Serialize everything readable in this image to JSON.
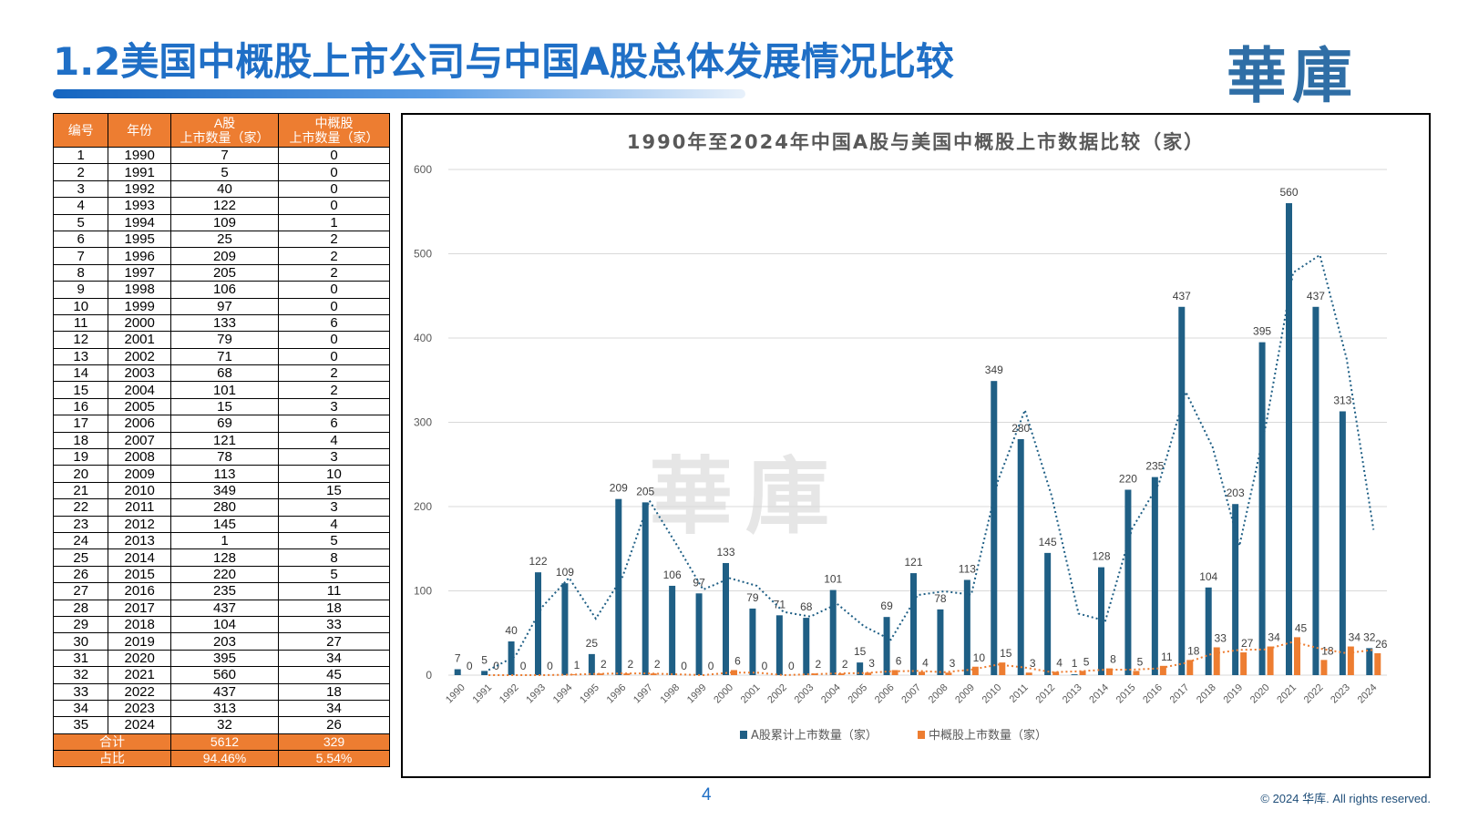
{
  "header": {
    "title": "1.2美国中概股上市公司与中国A股总体发展情况比较",
    "logo_text": "華庫"
  },
  "table": {
    "headers": [
      "编号",
      "年份",
      "A股\n上市数量（家）",
      "中概股\n上市数量（家）"
    ],
    "rows": [
      [
        "1",
        "1990",
        "7",
        "0"
      ],
      [
        "2",
        "1991",
        "5",
        "0"
      ],
      [
        "3",
        "1992",
        "40",
        "0"
      ],
      [
        "4",
        "1993",
        "122",
        "0"
      ],
      [
        "5",
        "1994",
        "109",
        "1"
      ],
      [
        "6",
        "1995",
        "25",
        "2"
      ],
      [
        "7",
        "1996",
        "209",
        "2"
      ],
      [
        "8",
        "1997",
        "205",
        "2"
      ],
      [
        "9",
        "1998",
        "106",
        "0"
      ],
      [
        "10",
        "1999",
        "97",
        "0"
      ],
      [
        "11",
        "2000",
        "133",
        "6"
      ],
      [
        "12",
        "2001",
        "79",
        "0"
      ],
      [
        "13",
        "2002",
        "71",
        "0"
      ],
      [
        "14",
        "2003",
        "68",
        "2"
      ],
      [
        "15",
        "2004",
        "101",
        "2"
      ],
      [
        "16",
        "2005",
        "15",
        "3"
      ],
      [
        "17",
        "2006",
        "69",
        "6"
      ],
      [
        "18",
        "2007",
        "121",
        "4"
      ],
      [
        "19",
        "2008",
        "78",
        "3"
      ],
      [
        "20",
        "2009",
        "113",
        "10"
      ],
      [
        "21",
        "2010",
        "349",
        "15"
      ],
      [
        "22",
        "2011",
        "280",
        "3"
      ],
      [
        "23",
        "2012",
        "145",
        "4"
      ],
      [
        "24",
        "2013",
        "1",
        "5"
      ],
      [
        "25",
        "2014",
        "128",
        "8"
      ],
      [
        "26",
        "2015",
        "220",
        "5"
      ],
      [
        "27",
        "2016",
        "235",
        "11"
      ],
      [
        "28",
        "2017",
        "437",
        "18"
      ],
      [
        "29",
        "2018",
        "104",
        "33"
      ],
      [
        "30",
        "2019",
        "203",
        "27"
      ],
      [
        "31",
        "2020",
        "395",
        "34"
      ],
      [
        "32",
        "2021",
        "560",
        "45"
      ],
      [
        "33",
        "2022",
        "437",
        "18"
      ],
      [
        "34",
        "2023",
        "313",
        "34"
      ],
      [
        "35",
        "2024",
        "32",
        "26"
      ]
    ],
    "footer": [
      [
        "合计",
        "5612",
        "329"
      ],
      [
        "占比",
        "94.46%",
        "5.54%"
      ]
    ]
  },
  "chart_data": {
    "type": "bar",
    "title": "1990年至2024年中国A股与美国中概股上市数据比较（家）",
    "categories": [
      "1990",
      "1991",
      "1992",
      "1993",
      "1994",
      "1995",
      "1996",
      "1997",
      "1998",
      "1999",
      "2000",
      "2001",
      "2002",
      "2003",
      "2004",
      "2005",
      "2006",
      "2007",
      "2008",
      "2009",
      "2010",
      "2011",
      "2012",
      "2013",
      "2014",
      "2015",
      "2016",
      "2017",
      "2018",
      "2019",
      "2020",
      "2021",
      "2022",
      "2023",
      "2024"
    ],
    "series": [
      {
        "name": "A股累计上市数量（家）",
        "color": "#1f5f85",
        "values": [
          7,
          5,
          40,
          122,
          109,
          25,
          209,
          205,
          106,
          97,
          133,
          79,
          71,
          68,
          101,
          15,
          69,
          121,
          78,
          113,
          349,
          280,
          145,
          1,
          128,
          220,
          235,
          437,
          104,
          203,
          395,
          560,
          437,
          313,
          32
        ]
      },
      {
        "name": "中概股上市数量（家）",
        "color": "#ed7d31",
        "values": [
          0,
          0,
          0,
          0,
          1,
          2,
          2,
          2,
          0,
          0,
          6,
          0,
          0,
          2,
          2,
          3,
          6,
          4,
          3,
          10,
          15,
          3,
          4,
          5,
          8,
          5,
          11,
          18,
          33,
          27,
          34,
          45,
          18,
          34,
          26
        ]
      }
    ],
    "trendlines": "moving average (dotted), one per series",
    "ylim": [
      0,
      600
    ],
    "yticks": [
      0,
      100,
      200,
      300,
      400,
      500,
      600
    ],
    "grid": true,
    "legend": "bottom"
  },
  "watermark": "華庫",
  "footer": {
    "page_number": "4",
    "copyright": "© 2024 华库. All rights reserved."
  }
}
